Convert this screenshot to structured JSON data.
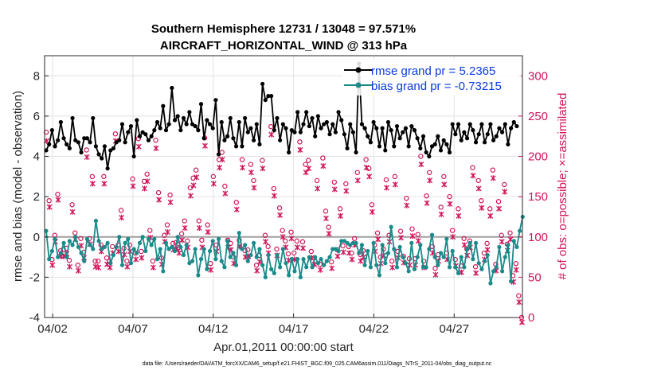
{
  "chart_data": {
    "type": "line",
    "title_line1": "Southern Hemisphere 12731 / 13048 = 97.571%",
    "title_line2": "AIRCRAFT_HORIZONTAL_WIND @ 313 hPa",
    "ylabel_left": "rmse and bias (model - observation)",
    "ylabel_right": "# of obs: o=possible; ×=assimilated",
    "xlabel": "Apr.01,2011 00:00:00 start",
    "footnote": "data file: /Users/raeder/DAI/ATM_forcXX/CAM6_setup/f.e21.FHIST_BGC.f09_025.CAM6assim.011/Diags_NTrS_2011-04/obs_diag_output.nc",
    "xlim": [
      1.5,
      31.25
    ],
    "ylim_left": [
      -4,
      9
    ],
    "ylim_right": [
      0,
      325
    ],
    "x_ticks": [
      2,
      7,
      12,
      17,
      22,
      27
    ],
    "x_tick_labels": [
      "04/02",
      "04/07",
      "04/12",
      "04/17",
      "04/22",
      "04/27"
    ],
    "left_ticks": [
      "-4",
      "-2",
      "0",
      "2",
      "4",
      "6",
      "8"
    ],
    "right_ticks": [
      "0",
      "50",
      "100",
      "150",
      "200",
      "250",
      "300"
    ],
    "legend": [
      {
        "label": "rmse grand pr = 5.2365",
        "color": "#000000"
      },
      {
        "label": "bias grand pr = -0.73215",
        "color": "#1a8a8a"
      }
    ],
    "colors": {
      "rmse": "#000000",
      "bias": "#1a8a8a",
      "obs": "#d0155a",
      "zero_line": "#a0a0a0"
    },
    "rmse": [
      4.3,
      4.6,
      5.3,
      4.5,
      4.8,
      5.7,
      4.9,
      4.6,
      4.4,
      5.9,
      4.8,
      4.7,
      4.2,
      4.9,
      4.9,
      4.7,
      5.9,
      4.5,
      4.1,
      3.9,
      4.5,
      3.4,
      4.3,
      4.4,
      4.7,
      4.8,
      5.6,
      4.7,
      5.2,
      5.5,
      4.0,
      5.8,
      5.0,
      5.2,
      5.1,
      4.8,
      5.0,
      5.3,
      5.7,
      5.4,
      6.5,
      5.3,
      5.6,
      7.4,
      5.8,
      6.0,
      5.3,
      5.9,
      5.6,
      6.2,
      5.6,
      5.5,
      5.3,
      6.6,
      4.9,
      5.8,
      5.6,
      5.4,
      6.8,
      4.1,
      5.7,
      4.8,
      5.0,
      5.9,
      4.9,
      4.5,
      5.7,
      4.5,
      5.9,
      5.2,
      5.4,
      4.8,
      5.6,
      4.6,
      7.6,
      6.8,
      7.0,
      7.0,
      5.3,
      5.9,
      4.8,
      5.6,
      5.4,
      4.2,
      5.3,
      5.2,
      6.2,
      5.2,
      5.6,
      6.2,
      5.5,
      5.9,
      5.0,
      6.0,
      5.4,
      5.6,
      5.7,
      5.1,
      5.6,
      5.2,
      6.2,
      5.8,
      5.1,
      4.4,
      5.6,
      5.2,
      4.2,
      8.6,
      5.6,
      5.4,
      5.0,
      4.7,
      5.7,
      5.4,
      4.5,
      5.4,
      4.3,
      5.7,
      5.3,
      4.5,
      5.5,
      4.9,
      5.2,
      5.4,
      4.5,
      5.5,
      5.3,
      4.9,
      4.4,
      5.0,
      4.2,
      4.0,
      4.5,
      4.6,
      5.0,
      4.3,
      4.8,
      4.6,
      4.2,
      5.6,
      5.1,
      5.6,
      4.8,
      5.2,
      4.9,
      5.6,
      5.3,
      4.7,
      5.1,
      5.6,
      4.7,
      5.1,
      5.6,
      4.8,
      5.0,
      5.4,
      5.2,
      5.6,
      4.6,
      5.4,
      5.7,
      5.5
    ],
    "bias": [
      0.3,
      -1.1,
      -0.7,
      -0.1,
      -1.0,
      -0.8,
      -0.3,
      -1.0,
      -0.2,
      -0.4,
      0.0,
      -0.5,
      -0.8,
      -1.2,
      -0.1,
      -0.4,
      -0.6,
      0.8,
      -0.2,
      -0.6,
      -0.5,
      -0.3,
      -1.3,
      -0.9,
      -0.5,
      0.0,
      -1.4,
      -0.3,
      -0.1,
      -1.3,
      -0.6,
      -0.8,
      -0.3,
      0.0,
      -0.7,
      -0.1,
      -0.4,
      -0.1,
      -1.1,
      -0.6,
      -1.7,
      -0.3,
      -0.6,
      -0.5,
      -0.7,
      0.0,
      -0.5,
      -0.9,
      -0.4,
      -1.3,
      -1.2,
      -0.6,
      -1.9,
      -1.1,
      -0.6,
      -1.6,
      -0.7,
      -0.2,
      -1.1,
      -0.1,
      -1.2,
      -1.5,
      -0.2,
      -1.0,
      -0.8,
      -1.4,
      0.2,
      -0.6,
      -0.4,
      -1.2,
      -0.9,
      -0.3,
      -1.0,
      -0.6,
      -1.4,
      -2.0,
      -0.9,
      -1.6,
      -1.8,
      -0.9,
      -1.5,
      -0.6,
      -1.3,
      -1.9,
      -1.1,
      -1.7,
      -1.1,
      -2.0,
      -1.1,
      -1.5,
      -1.0,
      -1.5,
      -1.0,
      -1.3,
      -1.1,
      -1.4,
      -1.2,
      -1.0,
      -0.6,
      -0.6,
      -0.7,
      -0.2,
      -0.2,
      -0.3,
      -0.4,
      -0.3,
      -0.3,
      -0.8,
      -0.4,
      -1.4,
      -0.7,
      -1.5,
      -0.3,
      -1.4,
      -1.9,
      -0.4,
      -1.3,
      -0.8,
      0.5,
      -0.6,
      -1.5,
      -0.5,
      -1.0,
      -1.3,
      -1.7,
      -0.3,
      -1.6,
      -1.0,
      -0.4,
      -1.5,
      -1.5,
      -0.6,
      0.1,
      -1.0,
      -1.4,
      -0.8,
      -1.0,
      -0.1,
      -1.5,
      -0.7,
      -1.5,
      -1.8,
      -1.0,
      -1.5,
      -0.6,
      -0.3,
      -1.1,
      -0.3,
      -1.3,
      -1.6,
      -1.2,
      -0.9,
      -2.3,
      -1.7,
      -1.5,
      -0.5,
      -1.7,
      -1.0,
      -0.4,
      -2.2,
      -0.2,
      -0.5,
      0.3,
      1.0
    ],
    "obs_possible": [
      230,
      145,
      72,
      102,
      153,
      83,
      84,
      86,
      71,
      140,
      105,
      65,
      98,
      81,
      208,
      98,
      175,
      70,
      70,
      90,
      175,
      74,
      70,
      88,
      228,
      90,
      133,
      86,
      70,
      90,
      172,
      80,
      222,
      82,
      169,
      178,
      108,
      70,
      220,
      155,
      74,
      102,
      115,
      152,
      92,
      93,
      87,
      104,
      120,
      95,
      161,
      173,
      183,
      120,
      96,
      223,
      115,
      67,
      175,
      90,
      196,
      205,
      163,
      96,
      92,
      75,
      143,
      96,
      196,
      83,
      84,
      190,
      170,
      65,
      77,
      195,
      102,
      88,
      237,
      160,
      85,
      136,
      108,
      95,
      79,
      106,
      80,
      95,
      218,
      94,
      190,
      195,
      82,
      74,
      170,
      66,
      198,
      132,
      112,
      69,
      168,
      84,
      135,
      89,
      166,
      88,
      80,
      98,
      180,
      78,
      83,
      196,
      185,
      140,
      90,
      105,
      75,
      85,
      171,
      102,
      70,
      175,
      82,
      107,
      76,
      148,
      73,
      110,
      73,
      103,
      200,
      70,
      151,
      180,
      88,
      61,
      78,
      137,
      175,
      80,
      150,
      108,
      72,
      135,
      64,
      98,
      85,
      95,
      186,
      63,
      170,
      145,
      80,
      92,
      135,
      183,
      66,
      144,
      102,
      165,
      91,
      105,
      52,
      67,
      27,
      0
    ],
    "obs_assimilated": [
      225,
      143,
      71,
      100,
      152,
      82,
      82,
      85,
      69,
      137,
      103,
      64,
      95,
      80,
      205,
      97,
      172,
      69,
      68,
      88,
      172,
      72,
      68,
      86,
      225,
      88,
      130,
      84,
      69,
      88,
      169,
      78,
      218,
      80,
      166,
      175,
      105,
      68,
      216,
      152,
      72,
      100,
      112,
      149,
      90,
      91,
      86,
      102,
      117,
      93,
      157,
      170,
      180,
      117,
      93,
      219,
      112,
      65,
      172,
      88,
      192,
      202,
      160,
      93,
      90,
      73,
      140,
      94,
      192,
      81,
      82,
      186,
      167,
      64,
      75,
      191,
      100,
      86,
      233,
      157,
      83,
      133,
      106,
      93,
      77,
      104,
      78,
      93,
      214,
      92,
      186,
      191,
      80,
      72,
      166,
      65,
      194,
      129,
      110,
      67,
      165,
      82,
      132,
      87,
      163,
      86,
      78,
      96,
      176,
      76,
      81,
      192,
      181,
      137,
      88,
      103,
      73,
      83,
      167,
      100,
      68,
      171,
      80,
      105,
      74,
      145,
      71,
      107,
      71,
      101,
      196,
      68,
      148,
      176,
      86,
      59,
      76,
      134,
      171,
      78,
      147,
      106,
      70,
      132,
      62,
      96,
      83,
      93,
      182,
      61,
      166,
      142,
      78,
      90,
      132,
      179,
      64,
      141,
      100,
      162,
      89,
      103,
      50,
      65,
      25,
      0
    ]
  }
}
